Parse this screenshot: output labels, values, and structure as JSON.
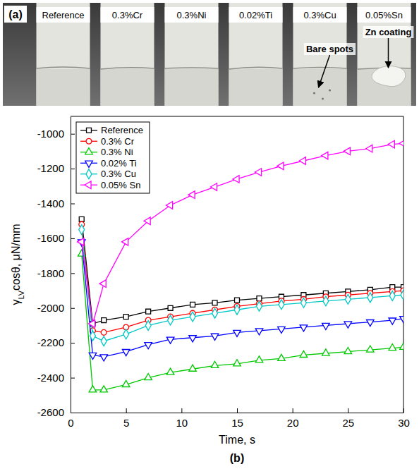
{
  "panel_a": {
    "label": "(a)",
    "strip_labels": [
      "Reference",
      "0.3%Cr",
      "0.3%Ni",
      "0.02%Ti",
      "0.3%Cu",
      "0.05%Sn"
    ],
    "annotations": [
      "Bare spots",
      "Zn coating"
    ]
  },
  "panel_b": {
    "label": "(b)"
  },
  "chart_data": {
    "type": "line",
    "x_label": "Time, s",
    "y_label": "γLVcosθ, μN/mm",
    "x": [
      1,
      2,
      3,
      5,
      7,
      9,
      11,
      13,
      15,
      17,
      19,
      21,
      23,
      25,
      27,
      29,
      30
    ],
    "series": [
      {
        "name": "Reference",
        "color": "#000000",
        "marker": "square",
        "values": [
          -1490,
          -2090,
          -2070,
          -2050,
          -2020,
          -2000,
          -1980,
          -1970,
          -1955,
          -1945,
          -1935,
          -1925,
          -1915,
          -1905,
          -1895,
          -1880,
          -1880
        ]
      },
      {
        "name": "0.3% Cr",
        "color": "#ff0000",
        "marker": "circle",
        "values": [
          -1520,
          -2130,
          -2140,
          -2110,
          -2070,
          -2050,
          -2030,
          -2010,
          -1990,
          -1975,
          -1960,
          -1950,
          -1935,
          -1925,
          -1915,
          -1905,
          -1900
        ]
      },
      {
        "name": "0.3% Ni",
        "color": "#00c800",
        "marker": "triangle-up",
        "values": [
          -1690,
          -2470,
          -2470,
          -2440,
          -2400,
          -2370,
          -2350,
          -2330,
          -2320,
          -2300,
          -2290,
          -2270,
          -2260,
          -2250,
          -2240,
          -2230,
          -2225
        ]
      },
      {
        "name": "0.02% Ti",
        "color": "#0000ff",
        "marker": "triangle-down",
        "values": [
          -1620,
          -2270,
          -2280,
          -2250,
          -2210,
          -2180,
          -2170,
          -2160,
          -2140,
          -2130,
          -2120,
          -2110,
          -2100,
          -2090,
          -2080,
          -2070,
          -2060
        ]
      },
      {
        "name": "0.3% Cu",
        "color": "#00c8c8",
        "marker": "diamond",
        "values": [
          -1550,
          -2160,
          -2190,
          -2150,
          -2100,
          -2070,
          -2050,
          -2030,
          -2010,
          -1990,
          -1980,
          -1970,
          -1960,
          -1950,
          -1940,
          -1930,
          -1925
        ]
      },
      {
        "name": "0.05% Sn",
        "color": "#ff00ff",
        "marker": "triangle-left",
        "values": [
          -1620,
          -2090,
          -1860,
          -1620,
          -1500,
          -1410,
          -1350,
          -1305,
          -1260,
          -1220,
          -1185,
          -1155,
          -1125,
          -1100,
          -1085,
          -1060,
          -1055
        ]
      }
    ],
    "xlim": [
      0,
      30
    ],
    "xticks": [
      0,
      5,
      10,
      15,
      20,
      25,
      30
    ],
    "ylim": [
      -2600,
      -900
    ],
    "yticks": [
      -2600,
      -2400,
      -2200,
      -2000,
      -1800,
      -1600,
      -1400,
      -1200,
      -1000
    ],
    "legend": "top-left",
    "grid": false
  }
}
